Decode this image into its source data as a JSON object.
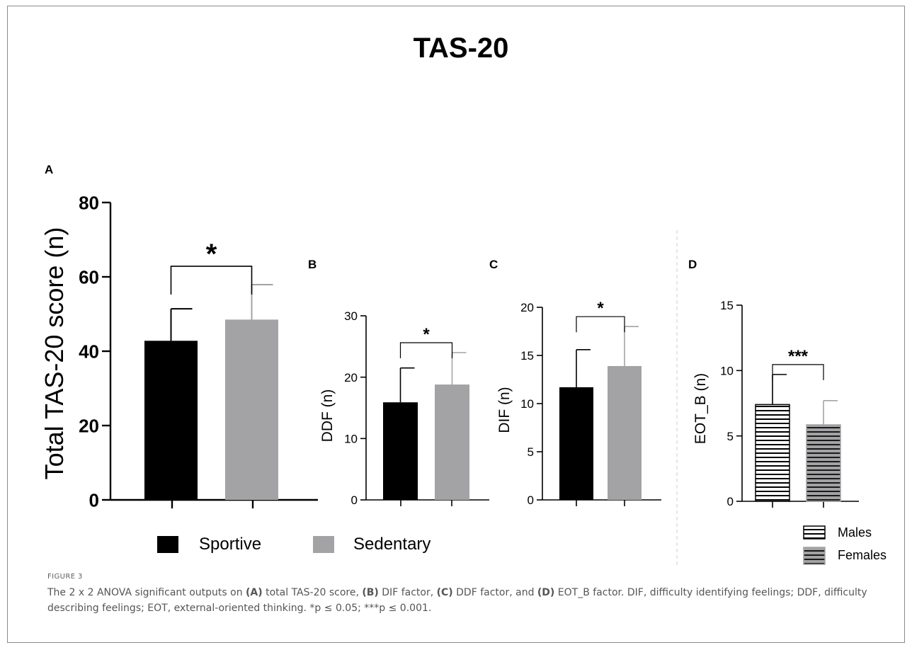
{
  "figure_title": "TAS-20",
  "caption": {
    "label": "FIGURE 3",
    "text_1": "The 2 x 2 ANOVA significant outputs on ",
    "a_tag": "(A)",
    "text_2": " total TAS-20 score, ",
    "b_tag": "(B)",
    "text_3": " DIF factor, ",
    "c_tag": "(C)",
    "text_4": " DDF factor, and ",
    "d_tag": "(D)",
    "text_5": " EOT_B factor. DIF, difficulty identifying feelings; DDF, difficulty describing feelings; EOT, external-oriented thinking. *p ≤ 0.05; ***p ≤ 0.001."
  },
  "legend_main": {
    "items": [
      "Sportive",
      "Sedentary"
    ]
  },
  "legend_d": {
    "items": [
      "Males",
      "Females"
    ]
  },
  "colors": {
    "sportive": "#000000",
    "sedentary": "#a3a3a5",
    "axis": "#000000",
    "divider": "#cccccc"
  },
  "chart_data": [
    {
      "panel": "A",
      "type": "bar",
      "ylabel": "Total TAS-20 score (n)",
      "ylim": [
        0,
        80
      ],
      "yticks": [
        0,
        20,
        40,
        60,
        80
      ],
      "categories": [
        "Sportive",
        "Sedentary"
      ],
      "values": [
        42.8,
        48.5
      ],
      "errors": [
        8.6,
        9.4
      ],
      "significance": "*"
    },
    {
      "panel": "B",
      "type": "bar",
      "ylabel": "DDF (n)",
      "ylim": [
        0,
        30
      ],
      "yticks": [
        0,
        10,
        20,
        30
      ],
      "categories": [
        "Sportive",
        "Sedentary"
      ],
      "values": [
        15.9,
        18.8
      ],
      "errors": [
        5.6,
        5.2
      ],
      "significance": "*"
    },
    {
      "panel": "C",
      "type": "bar",
      "ylabel": "DIF (n)",
      "ylim": [
        0,
        20
      ],
      "yticks": [
        0,
        5,
        10,
        15,
        20
      ],
      "categories": [
        "Sportive",
        "Sedentary"
      ],
      "values": [
        11.7,
        13.9
      ],
      "errors": [
        3.9,
        4.1
      ],
      "significance": "*"
    },
    {
      "panel": "D",
      "type": "bar",
      "ylabel": "EOT_B (n)",
      "ylim": [
        0,
        15
      ],
      "yticks": [
        0,
        5,
        10,
        15
      ],
      "categories": [
        "Males",
        "Females"
      ],
      "values": [
        7.4,
        5.85
      ],
      "errors": [
        2.3,
        1.85
      ],
      "significance": "***"
    }
  ]
}
